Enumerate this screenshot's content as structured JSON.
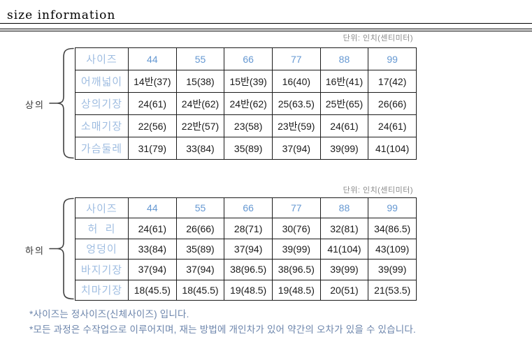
{
  "page": {
    "title": "size information"
  },
  "unit_label": "단위: 인치(센티미터)",
  "tables": [
    {
      "group_label": "상의",
      "header": {
        "label": "사이즈",
        "sizes": [
          "44",
          "55",
          "66",
          "77",
          "88",
          "99"
        ]
      },
      "rows": [
        {
          "label": "어깨넓이",
          "values": [
            "14반(37)",
            "15(38)",
            "15반(39)",
            "16(40)",
            "16반(41)",
            "17(42)"
          ]
        },
        {
          "label": "상의기장",
          "values": [
            "24(61)",
            "24반(62)",
            "24반(62)",
            "25(63.5)",
            "25반(65)",
            "26(66)"
          ]
        },
        {
          "label": "소매기장",
          "values": [
            "22(56)",
            "22반(57)",
            "23(58)",
            "23반(59)",
            "24(61)",
            "24(61)"
          ]
        },
        {
          "label": "가슴둘레",
          "values": [
            "31(79)",
            "33(84)",
            "35(89)",
            "37(94)",
            "39(99)",
            "41(104)"
          ]
        }
      ]
    },
    {
      "group_label": "하의",
      "header": {
        "label": "사이즈",
        "sizes": [
          "44",
          "55",
          "66",
          "77",
          "88",
          "99"
        ]
      },
      "rows": [
        {
          "label": "허  리",
          "values": [
            "24(61)",
            "26(66)",
            "28(71)",
            "30(76)",
            "32(81)",
            "34(86.5)"
          ]
        },
        {
          "label": "엉덩이",
          "values": [
            "33(84)",
            "35(89)",
            "37(94)",
            "39(99)",
            "41(104)",
            "43(109)"
          ]
        },
        {
          "label": "바지기장",
          "values": [
            "37(94)",
            "37(94)",
            "38(96.5)",
            "38(96.5)",
            "39(99)",
            "39(99)"
          ]
        },
        {
          "label": "치마기장",
          "values": [
            "18(45.5)",
            "18(45.5)",
            "19(48.5)",
            "19(48.5)",
            "20(51)",
            "21(53.5)"
          ]
        }
      ]
    }
  ],
  "notes": [
    "*사이즈는 정사이즈(신체사이즈) 입니다.",
    "*모든 과정은 수작업으로 이루어지며,  재는 방법에 개인차가 있어 약간의 오차가 있을 수 있습니다."
  ],
  "colors": {
    "label_blue": "#9fbde1",
    "number_blue": "#6598d2",
    "note_blue": "#6b84ab",
    "unit_gray": "#8a8a8a",
    "border_black": "#1a1a1a"
  }
}
